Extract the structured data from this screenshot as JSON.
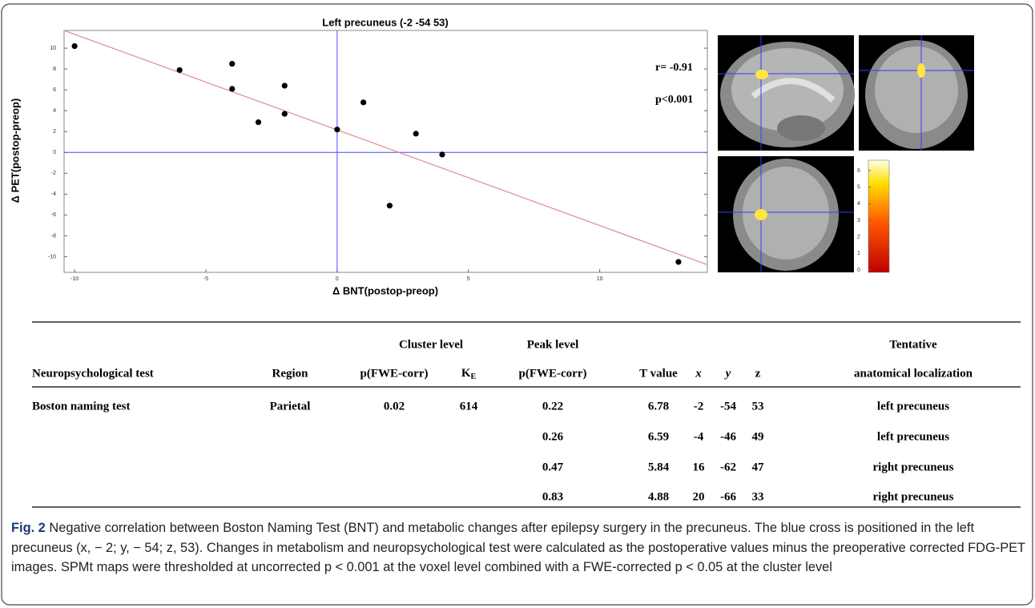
{
  "chart_data": {
    "type": "scatter",
    "title": "Left precuneus (-2 -54  53)",
    "x_label": "Δ BNT(postop-preop)",
    "y_label": "Δ PET(postop-preop)",
    "annotations": [
      "r= -0.91",
      "p<0.001"
    ],
    "x": [
      -10,
      -6,
      -4,
      -4,
      -2,
      -2,
      -3,
      0,
      1,
      3,
      4,
      2,
      13
    ],
    "series": [
      {
        "color": "#000000",
        "values": [
          10.2,
          7.9,
          8.5,
          6.1,
          6.4,
          3.7,
          2.9,
          2.2,
          4.8,
          1.8,
          -0.2,
          -5.1,
          -10.5
        ]
      }
    ],
    "fit": {
      "slope": -0.917,
      "intercept": 2.16,
      "color": "#e08a8a"
    },
    "crosshair_color": "#4a4aff",
    "xlim": [
      -10.4,
      14.1
    ],
    "ylim": [
      -11.5,
      11.7
    ],
    "xticks": [
      -10,
      -5,
      0,
      5,
      10
    ],
    "yticks": [
      -10,
      -8,
      -6,
      -4,
      -2,
      0,
      2,
      4,
      6,
      8,
      10
    ]
  },
  "colorbar": {
    "ticks": [
      0,
      1,
      2,
      3,
      4,
      5,
      6
    ]
  },
  "table": {
    "group_headers": [
      "Cluster level",
      "Peak level",
      "Tentative"
    ],
    "headers": [
      "Neuropsychological test",
      "Region",
      "p(FWE-corr)",
      {
        "base": "K",
        "sub": "E"
      },
      "p(FWE-corr)",
      "T value",
      "x",
      "y",
      "z",
      "anatomical localization"
    ],
    "rows": [
      [
        "Boston naming test",
        "Parietal",
        0.02,
        614,
        0.22,
        6.78,
        -2,
        -54,
        53,
        "left precuneus"
      ],
      [
        null,
        null,
        null,
        null,
        0.26,
        6.59,
        -4,
        -46,
        49,
        "left precuneus"
      ],
      [
        null,
        null,
        null,
        null,
        0.47,
        5.84,
        16,
        -62,
        47,
        "right precuneus"
      ],
      [
        null,
        null,
        null,
        null,
        0.83,
        4.88,
        20,
        -66,
        33,
        "right precuneus"
      ]
    ]
  },
  "caption": {
    "label": "Fig. 2",
    "text": "Negative correlation between Boston Naming Test (BNT) and metabolic changes after epilepsy surgery in the precuneus. The blue cross is positioned in the left precuneus (x, − 2; y, − 54; z, 53). Changes in metabolism and neuropsychological test were calculated as the postoperative values minus the preoperative corrected FDG-PET images. SPMt maps were thresholded at uncorrected p < 0.001 at the voxel level combined with a FWE-corrected p < 0.05 at the cluster level"
  }
}
